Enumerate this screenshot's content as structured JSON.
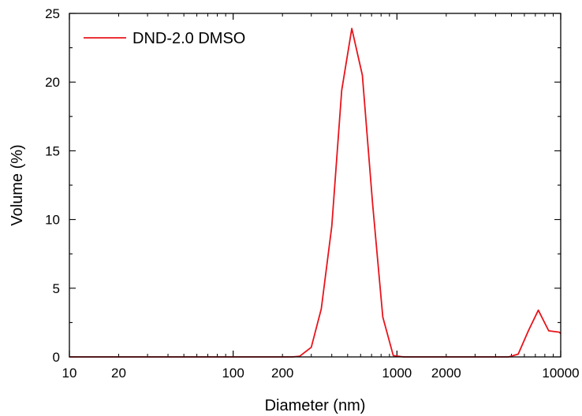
{
  "chart_data": {
    "type": "line",
    "xlabel": "Diameter (nm)",
    "ylabel": "Volume (%)",
    "x_scale": "log",
    "xlim": [
      10,
      10000
    ],
    "ylim": [
      0,
      25
    ],
    "x_tick_labels": [
      "10",
      "20",
      "100",
      "200",
      "1000",
      "2000",
      "10000"
    ],
    "x_tick_values": [
      10,
      20,
      100,
      200,
      1000,
      2000,
      10000
    ],
    "y_tick_labels": [
      "0",
      "5",
      "10",
      "15",
      "20",
      "25"
    ],
    "y_tick_values": [
      0,
      5,
      10,
      15,
      20,
      25
    ],
    "legend": {
      "position": "top-left"
    },
    "series": [
      {
        "name": "DND-2.0 DMSO",
        "color": "#e8141b",
        "x": [
          10,
          100,
          230,
          255,
          300,
          345,
          400,
          460,
          530,
          615,
          710,
          820,
          950,
          1100,
          1270,
          1500,
          2000,
          3000,
          4000,
          4800,
          5500,
          6350,
          7300,
          8450,
          9800,
          10000
        ],
        "y": [
          0,
          0,
          0,
          0.05,
          0.7,
          3.5,
          9.5,
          19.4,
          23.9,
          20.5,
          11.2,
          2.9,
          0.1,
          0,
          0,
          0,
          0,
          0,
          0,
          0,
          0.2,
          1.9,
          3.4,
          1.9,
          1.8,
          1.7
        ]
      }
    ]
  }
}
